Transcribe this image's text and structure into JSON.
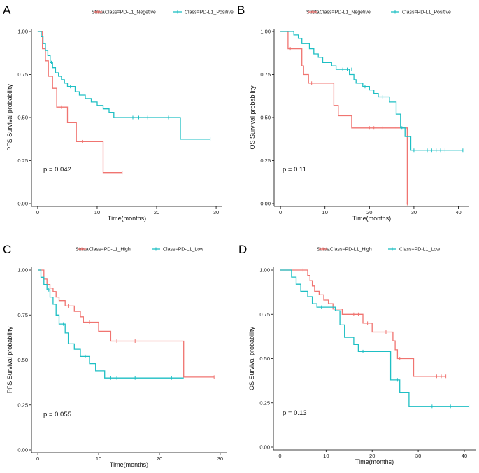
{
  "colors": {
    "red": "#f07470",
    "cyan": "#1ebfc4",
    "axis": "#000000"
  },
  "chart_data": [
    {
      "type": "line",
      "panel": "A",
      "legend_title": "Strata",
      "xlabel": "Time(months)",
      "ylabel": "PFS Survival probability",
      "xlim": [
        0,
        30
      ],
      "ylim": [
        0,
        1
      ],
      "xticks": [
        0,
        10,
        20,
        30
      ],
      "yticks": [
        0,
        0.25,
        0.5,
        0.75,
        1.0
      ],
      "pvalue": "p = 0.042",
      "series": [
        {
          "name": "Class=PD-L1_Negetive",
          "color": "#f07470",
          "steps": [
            [
              0,
              1.0
            ],
            [
              0.8,
              0.9
            ],
            [
              1.3,
              0.83
            ],
            [
              1.8,
              0.74
            ],
            [
              2.5,
              0.67
            ],
            [
              3.2,
              0.56
            ],
            [
              5.0,
              0.47
            ],
            [
              6.5,
              0.36
            ],
            [
              11.0,
              0.18
            ],
            [
              14.2,
              0.18
            ]
          ],
          "censors": [
            [
              4.0,
              0.56
            ],
            [
              7.5,
              0.36
            ],
            [
              14.2,
              0.18
            ]
          ]
        },
        {
          "name": "Class=PD-L1_Positive",
          "color": "#1ebfc4",
          "steps": [
            [
              0,
              1.0
            ],
            [
              0.6,
              0.97
            ],
            [
              0.9,
              0.93
            ],
            [
              1.3,
              0.89
            ],
            [
              1.7,
              0.86
            ],
            [
              2.1,
              0.82
            ],
            [
              2.5,
              0.79
            ],
            [
              3.0,
              0.76
            ],
            [
              3.5,
              0.74
            ],
            [
              4.0,
              0.72
            ],
            [
              4.5,
              0.7
            ],
            [
              5.0,
              0.68
            ],
            [
              6.3,
              0.65
            ],
            [
              7.0,
              0.63
            ],
            [
              8.0,
              0.61
            ],
            [
              9.0,
              0.59
            ],
            [
              10.0,
              0.57
            ],
            [
              11.0,
              0.55
            ],
            [
              12.0,
              0.53
            ],
            [
              12.8,
              0.5
            ],
            [
              24.0,
              0.375
            ],
            [
              29.0,
              0.375
            ]
          ],
          "censors": [
            [
              2.3,
              0.82
            ],
            [
              5.5,
              0.68
            ],
            [
              15.0,
              0.5
            ],
            [
              16.0,
              0.5
            ],
            [
              17.0,
              0.5
            ],
            [
              18.5,
              0.5
            ],
            [
              22.0,
              0.5
            ],
            [
              29.0,
              0.375
            ]
          ]
        }
      ]
    },
    {
      "type": "line",
      "panel": "B",
      "legend_title": "Strata",
      "xlabel": "Time(months)",
      "ylabel": "OS Survival probability",
      "xlim": [
        0,
        41
      ],
      "ylim": [
        0,
        1
      ],
      "xticks": [
        0,
        10,
        20,
        30,
        40
      ],
      "yticks": [
        0,
        0.25,
        0.5,
        0.75,
        1.0
      ],
      "pvalue": "p = 0.11",
      "series": [
        {
          "name": "Class=PD-L1_Negetive",
          "color": "#f07470",
          "steps": [
            [
              0,
              1.0
            ],
            [
              1.7,
              0.9
            ],
            [
              4.8,
              0.8
            ],
            [
              5.2,
              0.75
            ],
            [
              6.3,
              0.7
            ],
            [
              12.0,
              0.57
            ],
            [
              13.0,
              0.51
            ],
            [
              16.0,
              0.44
            ],
            [
              28.5,
              0.0
            ]
          ],
          "censors": [
            [
              2.2,
              0.9
            ],
            [
              7.0,
              0.7
            ],
            [
              20.0,
              0.44
            ],
            [
              21.0,
              0.44
            ],
            [
              23.0,
              0.44
            ],
            [
              26.0,
              0.44
            ],
            [
              28.5,
              0.0
            ]
          ]
        },
        {
          "name": "Class=PD-L1_Positive",
          "color": "#1ebfc4",
          "steps": [
            [
              0,
              1.0
            ],
            [
              3.0,
              0.98
            ],
            [
              4.0,
              0.96
            ],
            [
              4.8,
              0.93
            ],
            [
              6.5,
              0.9
            ],
            [
              7.5,
              0.87
            ],
            [
              8.5,
              0.85
            ],
            [
              9.5,
              0.82
            ],
            [
              11.5,
              0.8
            ],
            [
              12.5,
              0.78
            ],
            [
              15.5,
              0.75
            ],
            [
              16.5,
              0.72
            ],
            [
              17.0,
              0.7
            ],
            [
              18.5,
              0.68
            ],
            [
              20.0,
              0.66
            ],
            [
              21.0,
              0.64
            ],
            [
              22.0,
              0.62
            ],
            [
              24.5,
              0.59
            ],
            [
              26.0,
              0.52
            ],
            [
              27.0,
              0.44
            ],
            [
              28.0,
              0.39
            ],
            [
              29.3,
              0.31
            ],
            [
              41.0,
              0.31
            ]
          ],
          "censors": [
            [
              14.0,
              0.78
            ],
            [
              15.0,
              0.78
            ],
            [
              16.0,
              0.78
            ],
            [
              19.0,
              0.68
            ],
            [
              23.0,
              0.62
            ],
            [
              27.3,
              0.44
            ],
            [
              30.0,
              0.31
            ],
            [
              33.0,
              0.31
            ],
            [
              34.0,
              0.31
            ],
            [
              35.0,
              0.31
            ],
            [
              36.0,
              0.31
            ],
            [
              37.0,
              0.31
            ],
            [
              41.0,
              0.31
            ]
          ]
        }
      ]
    },
    {
      "type": "line",
      "panel": "C",
      "legend_title": "Strata",
      "xlabel": "Time(months)",
      "ylabel": "PFS Survival probability",
      "xlim": [
        0,
        30
      ],
      "ylim": [
        0,
        1
      ],
      "xticks": [
        0,
        10,
        20,
        30
      ],
      "yticks": [
        0,
        0.25,
        0.5,
        0.75,
        1.0
      ],
      "pvalue": "p = 0.055",
      "series": [
        {
          "name": "Class=PD-L1_High",
          "color": "#f07470",
          "steps": [
            [
              0,
              1.0
            ],
            [
              1.0,
              0.95
            ],
            [
              1.5,
              0.92
            ],
            [
              2.0,
              0.9
            ],
            [
              2.5,
              0.88
            ],
            [
              3.0,
              0.85
            ],
            [
              3.5,
              0.83
            ],
            [
              4.5,
              0.8
            ],
            [
              6.0,
              0.77
            ],
            [
              7.0,
              0.74
            ],
            [
              7.5,
              0.71
            ],
            [
              10.0,
              0.66
            ],
            [
              12.0,
              0.605
            ],
            [
              24.0,
              0.405
            ],
            [
              29.0,
              0.405
            ]
          ],
          "censors": [
            [
              5.0,
              0.8
            ],
            [
              8.5,
              0.71
            ],
            [
              13.0,
              0.605
            ],
            [
              15.0,
              0.605
            ],
            [
              16.0,
              0.605
            ],
            [
              29.0,
              0.405
            ]
          ]
        },
        {
          "name": "Class=PD-L1_Low",
          "color": "#1ebfc4",
          "steps": [
            [
              0,
              1.0
            ],
            [
              0.5,
              0.96
            ],
            [
              1.0,
              0.92
            ],
            [
              1.5,
              0.89
            ],
            [
              2.0,
              0.85
            ],
            [
              2.5,
              0.81
            ],
            [
              3.0,
              0.75
            ],
            [
              3.5,
              0.7
            ],
            [
              4.5,
              0.65
            ],
            [
              5.0,
              0.59
            ],
            [
              6.0,
              0.56
            ],
            [
              7.0,
              0.52
            ],
            [
              8.5,
              0.48
            ],
            [
              9.5,
              0.44
            ],
            [
              11.0,
              0.4
            ],
            [
              24.0,
              0.4
            ]
          ],
          "censors": [
            [
              1.8,
              0.89
            ],
            [
              4.2,
              0.7
            ],
            [
              7.8,
              0.52
            ],
            [
              12.0,
              0.4
            ],
            [
              13.0,
              0.4
            ],
            [
              15.0,
              0.4
            ],
            [
              16.0,
              0.4
            ],
            [
              22.0,
              0.4
            ]
          ]
        }
      ]
    },
    {
      "type": "line",
      "panel": "D",
      "legend_title": "Strata",
      "xlabel": "Time(months)",
      "ylabel": "OS Survival probability",
      "xlim": [
        0,
        41
      ],
      "ylim": [
        0,
        1
      ],
      "xticks": [
        0,
        10,
        20,
        30,
        40
      ],
      "yticks": [
        0,
        0.25,
        0.5,
        0.75,
        1.0
      ],
      "pvalue": "p = 0.13",
      "series": [
        {
          "name": "Class=PD-L1_High",
          "color": "#f07470",
          "steps": [
            [
              0,
              1.0
            ],
            [
              6.0,
              0.97
            ],
            [
              6.5,
              0.94
            ],
            [
              7.0,
              0.91
            ],
            [
              7.5,
              0.88
            ],
            [
              8.5,
              0.86
            ],
            [
              9.5,
              0.83
            ],
            [
              10.5,
              0.81
            ],
            [
              11.5,
              0.78
            ],
            [
              13.5,
              0.75
            ],
            [
              18.0,
              0.7
            ],
            [
              20.0,
              0.65
            ],
            [
              24.5,
              0.6
            ],
            [
              25.0,
              0.55
            ],
            [
              25.5,
              0.5
            ],
            [
              29.0,
              0.4
            ],
            [
              36.0,
              0.4
            ]
          ],
          "censors": [
            [
              5.0,
              1.0
            ],
            [
              12.0,
              0.78
            ],
            [
              16.0,
              0.75
            ],
            [
              17.0,
              0.75
            ],
            [
              19.0,
              0.7
            ],
            [
              23.0,
              0.65
            ],
            [
              26.0,
              0.5
            ],
            [
              34.0,
              0.4
            ],
            [
              35.0,
              0.4
            ],
            [
              36.0,
              0.4
            ]
          ]
        },
        {
          "name": "Class=PD-L1_Low",
          "color": "#1ebfc4",
          "steps": [
            [
              0,
              1.0
            ],
            [
              2.5,
              0.96
            ],
            [
              3.5,
              0.92
            ],
            [
              4.5,
              0.88
            ],
            [
              6.0,
              0.85
            ],
            [
              7.0,
              0.81
            ],
            [
              8.0,
              0.79
            ],
            [
              12.0,
              0.77
            ],
            [
              13.0,
              0.69
            ],
            [
              14.0,
              0.62
            ],
            [
              16.0,
              0.58
            ],
            [
              17.0,
              0.54
            ],
            [
              24.0,
              0.38
            ],
            [
              26.0,
              0.31
            ],
            [
              28.0,
              0.23
            ],
            [
              41.0,
              0.23
            ]
          ],
          "censors": [
            [
              9.0,
              0.79
            ],
            [
              18.0,
              0.54
            ],
            [
              25.5,
              0.38
            ],
            [
              33.0,
              0.23
            ],
            [
              37.0,
              0.23
            ],
            [
              41.0,
              0.23
            ]
          ]
        }
      ]
    }
  ]
}
